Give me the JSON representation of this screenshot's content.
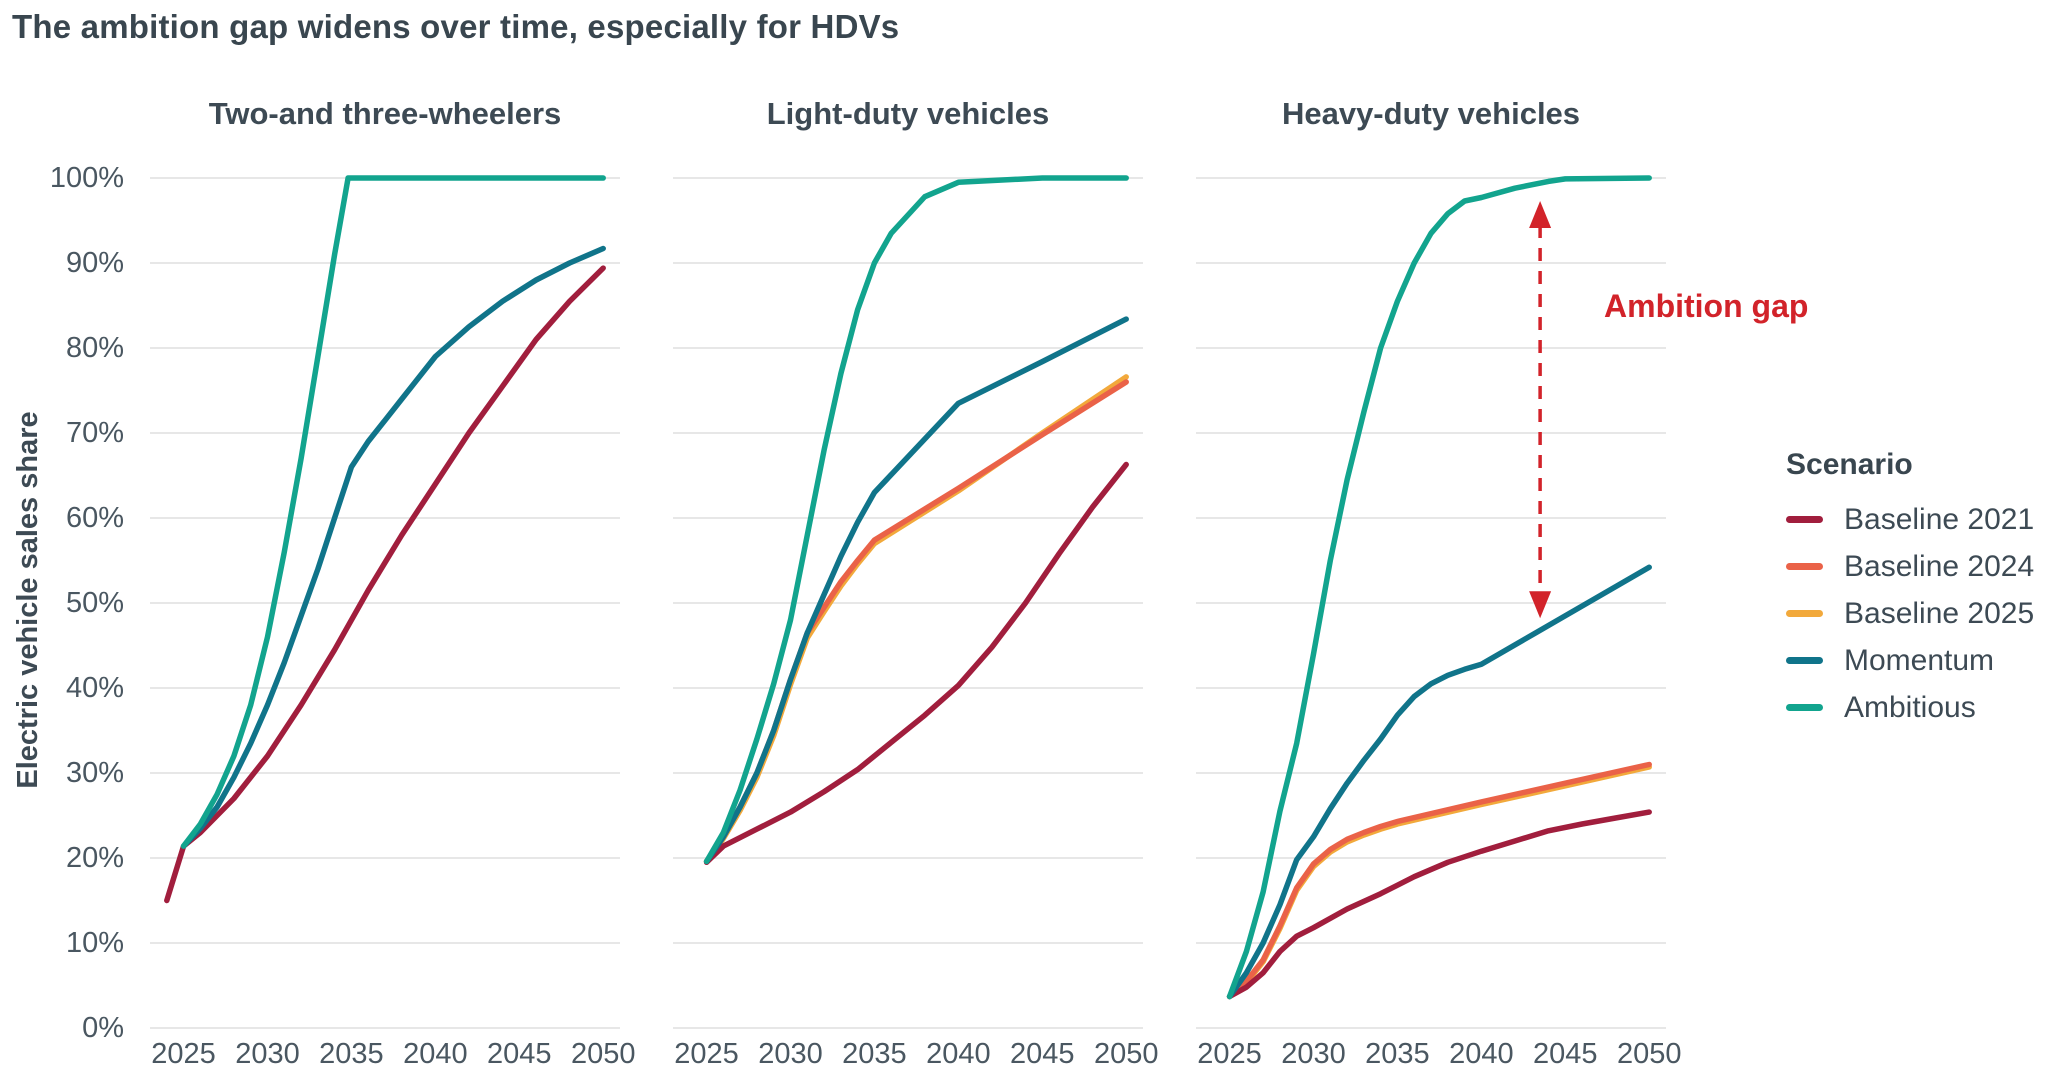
{
  "title": "The ambition gap widens over time, especially for HDVs",
  "y_axis": {
    "label": "Electric vehicle sales share",
    "ticks": [
      "0%",
      "10%",
      "20%",
      "30%",
      "40%",
      "50%",
      "60%",
      "70%",
      "80%",
      "90%",
      "100%"
    ]
  },
  "x_axis": {
    "ticks": [
      2025,
      2030,
      2035,
      2040,
      2045,
      2050
    ]
  },
  "legend": {
    "title": "Scenario",
    "items": [
      {
        "label": "Baseline 2021",
        "color": "#a11e3d"
      },
      {
        "label": "Baseline 2024",
        "color": "#ea6248"
      },
      {
        "label": "Baseline 2025",
        "color": "#f2a93b"
      },
      {
        "label": "Momentum",
        "color": "#10748a"
      },
      {
        "label": "Ambitious",
        "color": "#12a48e"
      }
    ]
  },
  "annotation": {
    "text": "Ambition gap",
    "color": "#d2232a"
  },
  "style_colors": {
    "text_slate": "#3d4a54",
    "gridline": "#e7e7e7",
    "background": "#ffffff"
  },
  "chart_data": [
    {
      "type": "line",
      "title": "Two-and three-wheelers",
      "ylabel": "Electric vehicle sales share",
      "ylim": [
        0,
        100
      ],
      "xlim": [
        2023,
        2051
      ],
      "grid": "horizontal",
      "series": [
        {
          "name": "Baseline 2021",
          "color": "#a11e3d",
          "points": [
            [
              2024,
              15
            ],
            [
              2025,
              21.4
            ],
            [
              2026,
              23
            ],
            [
              2028,
              27
            ],
            [
              2030,
              32
            ],
            [
              2032,
              38
            ],
            [
              2034,
              44.5
            ],
            [
              2036,
              51.5
            ],
            [
              2038,
              58
            ],
            [
              2040,
              64
            ],
            [
              2042,
              70
            ],
            [
              2044,
              75.5
            ],
            [
              2046,
              81
            ],
            [
              2048,
              85.5
            ],
            [
              2050,
              89.4
            ]
          ]
        },
        {
          "name": "Momentum",
          "color": "#10748a",
          "points": [
            [
              2025,
              21.4
            ],
            [
              2026,
              23.5
            ],
            [
              2027,
              26
            ],
            [
              2028,
              29.5
            ],
            [
              2029,
              33.5
            ],
            [
              2030,
              38
            ],
            [
              2031,
              43
            ],
            [
              2032,
              48.5
            ],
            [
              2033,
              54
            ],
            [
              2034,
              60
            ],
            [
              2035,
              66
            ],
            [
              2036,
              69
            ],
            [
              2037,
              71.5
            ],
            [
              2038,
              74
            ],
            [
              2040,
              79
            ],
            [
              2042,
              82.5
            ],
            [
              2044,
              85.5
            ],
            [
              2046,
              88
            ],
            [
              2048,
              90
            ],
            [
              2050,
              91.7
            ]
          ]
        },
        {
          "name": "Ambitious",
          "color": "#12a48e",
          "points": [
            [
              2025,
              21.4
            ],
            [
              2026,
              24
            ],
            [
              2027,
              27.5
            ],
            [
              2028,
              32
            ],
            [
              2029,
              38
            ],
            [
              2030,
              46
            ],
            [
              2031,
              56
            ],
            [
              2032,
              67
            ],
            [
              2033,
              79
            ],
            [
              2034,
              91
            ],
            [
              2034.8,
              100
            ],
            [
              2040,
              100
            ],
            [
              2045,
              100
            ],
            [
              2050,
              100
            ]
          ]
        }
      ]
    },
    {
      "type": "line",
      "title": "Light-duty vehicles",
      "ylim": [
        0,
        100
      ],
      "xlim": [
        2023,
        2051
      ],
      "grid": "horizontal",
      "series": [
        {
          "name": "Baseline 2025",
          "color": "#f2a93b",
          "points": [
            [
              2025,
              19.6
            ],
            [
              2026,
              22.3
            ],
            [
              2027,
              25.6
            ],
            [
              2028,
              29.5
            ],
            [
              2029,
              34.4
            ],
            [
              2030,
              40.4
            ],
            [
              2031,
              45.9
            ],
            [
              2032,
              49
            ],
            [
              2033,
              52
            ],
            [
              2034,
              54.6
            ],
            [
              2035,
              57
            ],
            [
              2040,
              63.2
            ],
            [
              2045,
              70
            ],
            [
              2050,
              76.6
            ]
          ]
        },
        {
          "name": "Baseline 2024",
          "color": "#ea6248",
          "points": [
            [
              2025,
              19.6
            ],
            [
              2026,
              22.5
            ],
            [
              2027,
              26
            ],
            [
              2028,
              30
            ],
            [
              2029,
              35
            ],
            [
              2030,
              41
            ],
            [
              2031,
              46.5
            ],
            [
              2032,
              49.5
            ],
            [
              2033,
              52.5
            ],
            [
              2034,
              55
            ],
            [
              2035,
              57.4
            ],
            [
              2040,
              63.5
            ],
            [
              2045,
              69.8
            ],
            [
              2050,
              76
            ]
          ]
        },
        {
          "name": "Baseline 2021",
          "color": "#a11e3d",
          "points": [
            [
              2025,
              19.5
            ],
            [
              2026,
              21.4
            ],
            [
              2028,
              23.4
            ],
            [
              2030,
              25.4
            ],
            [
              2032,
              27.8
            ],
            [
              2034,
              30.4
            ],
            [
              2036,
              33.6
            ],
            [
              2038,
              36.8
            ],
            [
              2040,
              40.3
            ],
            [
              2042,
              44.8
            ],
            [
              2044,
              50
            ],
            [
              2046,
              55.8
            ],
            [
              2048,
              61.3
            ],
            [
              2050,
              66.3
            ]
          ]
        },
        {
          "name": "Momentum",
          "color": "#10748a",
          "points": [
            [
              2025,
              19.6
            ],
            [
              2026,
              22.5
            ],
            [
              2027,
              26
            ],
            [
              2028,
              30
            ],
            [
              2029,
              35
            ],
            [
              2030,
              41
            ],
            [
              2031,
              46.5
            ],
            [
              2032,
              51
            ],
            [
              2033,
              55.5
            ],
            [
              2034,
              59.5
            ],
            [
              2035,
              63
            ],
            [
              2040,
              73.5
            ],
            [
              2045,
              78.4
            ],
            [
              2050,
              83.4
            ]
          ]
        },
        {
          "name": "Ambitious",
          "color": "#12a48e",
          "points": [
            [
              2025,
              19.6
            ],
            [
              2026,
              23
            ],
            [
              2027,
              28
            ],
            [
              2028,
              34
            ],
            [
              2029,
              40.5
            ],
            [
              2030,
              48
            ],
            [
              2031,
              58
            ],
            [
              2032,
              68
            ],
            [
              2033,
              77
            ],
            [
              2034,
              84.5
            ],
            [
              2035,
              90
            ],
            [
              2036,
              93.5
            ],
            [
              2038,
              97.8
            ],
            [
              2040,
              99.5
            ],
            [
              2045,
              100
            ],
            [
              2050,
              100
            ]
          ]
        }
      ]
    },
    {
      "type": "line",
      "title": "Heavy-duty vehicles",
      "ylim": [
        0,
        100
      ],
      "xlim": [
        2023,
        2051
      ],
      "grid": "horizontal",
      "annotation_arrow": {
        "year": 2043.5,
        "value_top": 97.3,
        "value_bottom": 48.2,
        "color": "#d2232a"
      },
      "series": [
        {
          "name": "Baseline 2025",
          "color": "#f2a93b",
          "points": [
            [
              2025,
              3.7
            ],
            [
              2026,
              5.3
            ],
            [
              2027,
              7.8
            ],
            [
              2028,
              11.7
            ],
            [
              2029,
              16.2
            ],
            [
              2030,
              19
            ],
            [
              2031,
              20.7
            ],
            [
              2032,
              21.9
            ],
            [
              2033,
              22.7
            ],
            [
              2034,
              23.4
            ],
            [
              2035,
              24
            ],
            [
              2040,
              26.3
            ],
            [
              2045,
              28.5
            ],
            [
              2050,
              30.7
            ]
          ]
        },
        {
          "name": "Baseline 2024",
          "color": "#ea6248",
          "points": [
            [
              2025,
              3.7
            ],
            [
              2026,
              5.5
            ],
            [
              2027,
              8
            ],
            [
              2028,
              12
            ],
            [
              2029,
              16.5
            ],
            [
              2030,
              19.3
            ],
            [
              2031,
              21
            ],
            [
              2032,
              22.2
            ],
            [
              2033,
              23
            ],
            [
              2034,
              23.7
            ],
            [
              2035,
              24.3
            ],
            [
              2040,
              26.6
            ],
            [
              2045,
              28.8
            ],
            [
              2050,
              31
            ]
          ]
        },
        {
          "name": "Baseline 2021",
          "color": "#a11e3d",
          "points": [
            [
              2025,
              3.7
            ],
            [
              2026,
              4.8
            ],
            [
              2027,
              6.5
            ],
            [
              2028,
              9
            ],
            [
              2029,
              10.8
            ],
            [
              2030,
              11.8
            ],
            [
              2032,
              14
            ],
            [
              2034,
              15.8
            ],
            [
              2036,
              17.8
            ],
            [
              2038,
              19.5
            ],
            [
              2040,
              20.8
            ],
            [
              2042,
              22
            ],
            [
              2044,
              23.2
            ],
            [
              2046,
              24
            ],
            [
              2048,
              24.7
            ],
            [
              2050,
              25.4
            ]
          ]
        },
        {
          "name": "Momentum",
          "color": "#10748a",
          "points": [
            [
              2025,
              3.7
            ],
            [
              2026,
              6.5
            ],
            [
              2027,
              10
            ],
            [
              2028,
              14.5
            ],
            [
              2029,
              19.8
            ],
            [
              2030,
              22.5
            ],
            [
              2031,
              25.8
            ],
            [
              2032,
              28.8
            ],
            [
              2033,
              31.5
            ],
            [
              2034,
              34
            ],
            [
              2035,
              36.8
            ],
            [
              2036,
              39
            ],
            [
              2037,
              40.5
            ],
            [
              2038,
              41.5
            ],
            [
              2039,
              42.2
            ],
            [
              2040,
              42.8
            ],
            [
              2045,
              48.5
            ],
            [
              2050,
              54.2
            ]
          ]
        },
        {
          "name": "Ambitious",
          "color": "#12a48e",
          "points": [
            [
              2025,
              3.7
            ],
            [
              2026,
              9
            ],
            [
              2027,
              16
            ],
            [
              2028,
              25.5
            ],
            [
              2029,
              33.5
            ],
            [
              2030,
              44
            ],
            [
              2031,
              55
            ],
            [
              2032,
              64.5
            ],
            [
              2033,
              72.5
            ],
            [
              2034,
              80
            ],
            [
              2035,
              85.5
            ],
            [
              2036,
              90
            ],
            [
              2037,
              93.5
            ],
            [
              2038,
              95.8
            ],
            [
              2039,
              97.3
            ],
            [
              2040,
              97.7
            ],
            [
              2042,
              98.8
            ],
            [
              2044,
              99.6
            ],
            [
              2045,
              99.9
            ],
            [
              2050,
              100
            ]
          ]
        }
      ]
    }
  ]
}
